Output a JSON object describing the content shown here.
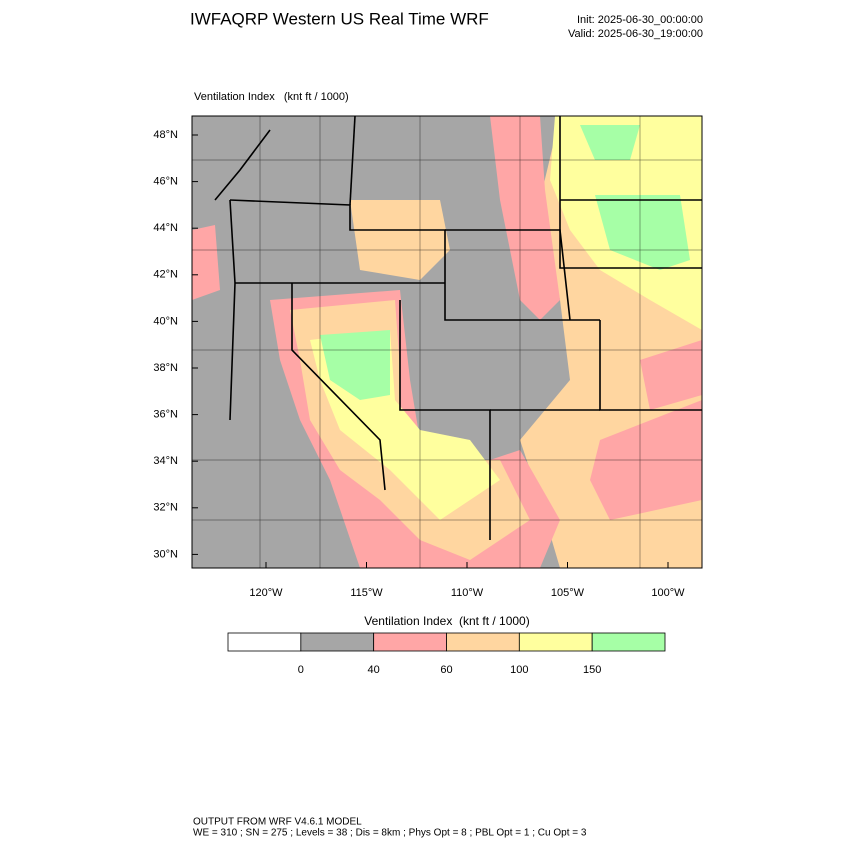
{
  "header": {
    "title": "IWFAQRP Western US Real Time WRF",
    "init": "Init: 2025-06-30_00:00:00",
    "valid": "Valid: 2025-06-30_19:00:00"
  },
  "map": {
    "subtitle": "Ventilation Index   (knt ft / 1000)",
    "lat_labels": [
      "48°N",
      "46°N",
      "44°N",
      "42°N",
      "40°N",
      "38°N",
      "36°N",
      "34°N",
      "32°N",
      "30°N"
    ],
    "lon_labels": [
      "120°W",
      "115°W",
      "110°W",
      "105°W",
      "100°W"
    ]
  },
  "colorbar": {
    "title": "Ventilation Index  (knt ft / 1000)",
    "colors": [
      "#ffffff",
      "#a6a6a6",
      "#ffa6a6",
      "#ffd6a0",
      "#ffff9e",
      "#a6ffa6"
    ],
    "levels": [
      0,
      40,
      60,
      100,
      150
    ]
  },
  "footer": {
    "line1": "OUTPUT FROM WRF V4.6.1 MODEL",
    "line2": "WE = 310 ; SN = 275 ; Levels = 38 ; Dis = 8km ; Phys Opt = 8 ; PBL Opt = 1 ; Cu Opt = 3"
  }
}
